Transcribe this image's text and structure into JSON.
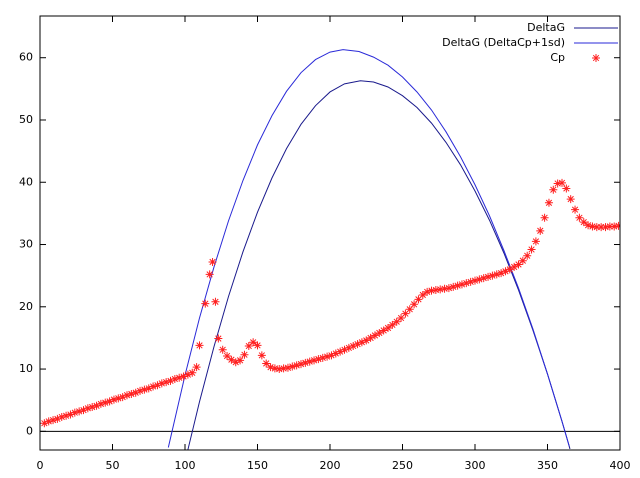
{
  "chart_data": {
    "type": "line",
    "xlim": [
      0,
      400
    ],
    "xticks": [
      0,
      50,
      100,
      150,
      200,
      250,
      300,
      350,
      400
    ],
    "ylim": [
      -3,
      66.7
    ],
    "yticks": [
      0,
      10,
      20,
      30,
      40,
      50,
      60
    ],
    "zero_axis": true,
    "legend": "top-right",
    "series": [
      {
        "name": "DeltaG",
        "color": "#1a1a8c",
        "style": "line",
        "x": [
          102,
          110,
          120,
          130,
          140,
          150,
          160,
          170,
          180,
          190,
          200,
          210,
          221,
          230,
          240,
          250,
          260,
          270,
          280,
          290,
          300,
          310,
          320,
          330,
          340,
          350,
          360,
          364,
          365.5
        ],
        "values": [
          -2.95,
          4.75,
          13.6,
          21.65,
          28.85,
          35.2,
          40.7,
          45.4,
          49.3,
          52.3,
          54.5,
          55.8,
          56.3,
          56.1,
          55.3,
          53.9,
          52.0,
          49.5,
          46.4,
          42.8,
          38.6,
          33.9,
          28.6,
          22.7,
          16.2,
          9.2,
          1.6,
          -1.6,
          -2.83
        ]
      },
      {
        "name": "DeltaG (DeltaCp+1sd)",
        "color": "#2a2ad8",
        "style": "line",
        "x": [
          88.5,
          100,
          110,
          120,
          130,
          140,
          150,
          160,
          170,
          180,
          190,
          200,
          209,
          220,
          230,
          240,
          250,
          260,
          270,
          280,
          290,
          300,
          310,
          320,
          330,
          340,
          350,
          360,
          365
        ],
        "values": [
          -2.6,
          9.0,
          18.2,
          26.4,
          33.8,
          40.3,
          46.0,
          50.7,
          54.6,
          57.6,
          59.7,
          60.9,
          61.3,
          61.0,
          60.1,
          58.8,
          56.9,
          54.5,
          51.6,
          48.1,
          44.1,
          39.6,
          34.6,
          29.0,
          23.0,
          16.4,
          9.2,
          1.6,
          -2.4
        ]
      },
      {
        "name": "Cp",
        "color": "#ff2020",
        "style": "points",
        "x": [
          3,
          6,
          9,
          12,
          15,
          18,
          21,
          24,
          27,
          30,
          33,
          36,
          39,
          42,
          45,
          48,
          51,
          54,
          57,
          60,
          63,
          66,
          69,
          72,
          75,
          78,
          81,
          84,
          87,
          90,
          93,
          96,
          99,
          102,
          105,
          108,
          110,
          114,
          117,
          119,
          121,
          123,
          126,
          129,
          132,
          135,
          138,
          141,
          144,
          147,
          150,
          153,
          156,
          159,
          162,
          165,
          168,
          171,
          174,
          177,
          180,
          183,
          186,
          189,
          192,
          195,
          198,
          201,
          204,
          207,
          210,
          213,
          216,
          219,
          222,
          225,
          228,
          231,
          234,
          237,
          240,
          243,
          246,
          249,
          252,
          255,
          258,
          261,
          264,
          267,
          270,
          273,
          276,
          279,
          282,
          285,
          288,
          291,
          294,
          297,
          300,
          303,
          306,
          309,
          312,
          315,
          318,
          321,
          324,
          327,
          330,
          333,
          336,
          339,
          342,
          345,
          348,
          351,
          354,
          357,
          360,
          363,
          366,
          369,
          372,
          375,
          378,
          381,
          384,
          387,
          390,
          393,
          396,
          399
        ],
        "values": [
          1.3,
          1.6,
          1.8,
          2.0,
          2.3,
          2.5,
          2.7,
          3.0,
          3.2,
          3.4,
          3.7,
          3.9,
          4.1,
          4.4,
          4.6,
          4.8,
          5.1,
          5.3,
          5.5,
          5.8,
          6.0,
          6.2,
          6.5,
          6.7,
          6.9,
          7.2,
          7.4,
          7.7,
          7.9,
          8.1,
          8.4,
          8.6,
          8.8,
          9.1,
          9.4,
          10.3,
          13.8,
          20.5,
          25.2,
          27.2,
          20.8,
          14.9,
          13.1,
          12.1,
          11.5,
          11.1,
          11.4,
          12.3,
          13.7,
          14.3,
          13.8,
          12.2,
          10.9,
          10.3,
          10.1,
          10.0,
          10.1,
          10.2,
          10.4,
          10.6,
          10.8,
          11.0,
          11.2,
          11.4,
          11.6,
          11.8,
          12.0,
          12.2,
          12.5,
          12.8,
          13.1,
          13.4,
          13.7,
          14.0,
          14.3,
          14.6,
          15.0,
          15.4,
          15.8,
          16.2,
          16.6,
          17.1,
          17.6,
          18.2,
          18.9,
          19.6,
          20.4,
          21.2,
          21.9,
          22.4,
          22.6,
          22.7,
          22.8,
          22.9,
          23.0,
          23.2,
          23.4,
          23.6,
          23.8,
          24.0,
          24.2,
          24.4,
          24.6,
          24.8,
          25.0,
          25.2,
          25.4,
          25.7,
          26.0,
          26.4,
          26.8,
          27.4,
          28.2,
          29.2,
          30.5,
          32.2,
          34.3,
          36.7,
          38.8,
          39.8,
          39.9,
          39.0,
          37.3,
          35.6,
          34.3,
          33.6,
          33.1,
          32.9,
          32.8,
          32.8,
          32.8,
          32.9,
          32.9,
          33.0
        ]
      }
    ]
  }
}
